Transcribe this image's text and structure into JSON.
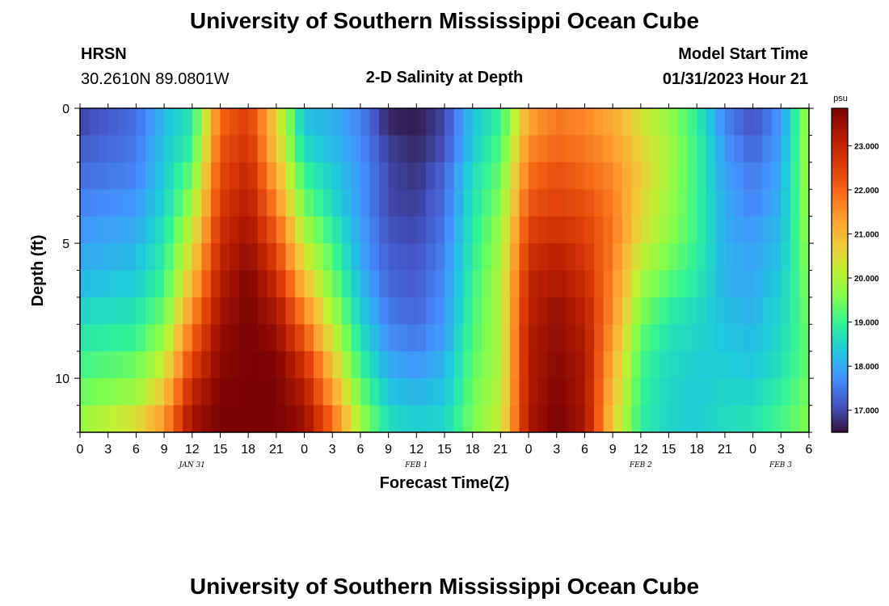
{
  "page": {
    "title": "University of Southern Mississippi Ocean Cube",
    "footer_title": "University of Southern Mississippi Ocean Cube",
    "station": "HRSN",
    "location": "30.2610N  89.0801W",
    "plot_title": "2-D Salinity at Depth",
    "start_label": "Model Start Time",
    "start_value": "01/31/2023 Hour 21"
  },
  "chart_data": {
    "type": "heatmap",
    "title": "2-D Salinity at Depth",
    "xlabel": "Forecast Time(Z)",
    "ylabel": "Depth (ft)",
    "colorbar_unit": "psu",
    "x_ticks": [
      "0",
      "3",
      "6",
      "9",
      "12",
      "15",
      "18",
      "21",
      "0",
      "3",
      "6",
      "9",
      "12",
      "15",
      "18",
      "21",
      "0",
      "3",
      "6",
      "9",
      "12",
      "15",
      "18",
      "21",
      "0",
      "3",
      "6"
    ],
    "day_labels": [
      {
        "label": "JAN 31",
        "hour_index": 12
      },
      {
        "label": "FEB 1",
        "hour_index": 36
      },
      {
        "label": "FEB 2",
        "hour_index": 60
      },
      {
        "label": "FEB 3",
        "hour_index": 84
      }
    ],
    "x_range_hours": [
      0,
      78
    ],
    "y_ticks": [
      0,
      5,
      10
    ],
    "y_range_ft": [
      0,
      12
    ],
    "colorbar_ticks": [
      "17.000",
      "18.000",
      "19.000",
      "20.000",
      "21.000",
      "22.000",
      "23.000"
    ],
    "color_range_psu": [
      16.5,
      23.85
    ],
    "depth_layers_ft": [
      0.5,
      1.5,
      2.5,
      3.5,
      4.5,
      5.5,
      6.5,
      7.5,
      8.5,
      9.5,
      10.5,
      11.5
    ],
    "profile_time_hours": [
      0,
      6,
      9,
      12,
      15,
      18,
      21,
      24,
      27,
      30,
      33,
      36,
      39,
      42,
      45,
      48,
      51,
      54,
      57,
      60,
      63,
      66,
      69,
      72,
      75,
      78
    ],
    "profiles_psu": [
      [
        17.0,
        17.4,
        18.2,
        18.8,
        22.0,
        22.6,
        20.6,
        18.3,
        18.1,
        17.6,
        16.7,
        16.6,
        17.0,
        18.3,
        19.0,
        21.3,
        21.8,
        21.6,
        21.2,
        20.4,
        19.8,
        18.9,
        17.6,
        17.1,
        17.8,
        20.0
      ],
      [
        17.2,
        17.5,
        18.3,
        19.0,
        22.2,
        22.8,
        20.8,
        18.6,
        18.2,
        17.7,
        16.9,
        16.7,
        17.1,
        18.4,
        19.2,
        21.6,
        22.0,
        21.8,
        21.4,
        20.6,
        19.9,
        19.0,
        17.8,
        17.3,
        17.9,
        20.0
      ],
      [
        17.4,
        17.6,
        18.4,
        19.4,
        22.4,
        23.0,
        21.2,
        19.0,
        18.4,
        17.8,
        17.0,
        16.8,
        17.3,
        18.6,
        19.4,
        21.9,
        22.3,
        22.0,
        21.6,
        20.7,
        19.9,
        19.0,
        17.9,
        17.5,
        18.0,
        20.0
      ],
      [
        17.6,
        17.8,
        18.5,
        19.8,
        22.6,
        23.2,
        21.6,
        19.4,
        18.6,
        17.8,
        17.0,
        16.9,
        17.4,
        18.7,
        19.6,
        22.2,
        22.5,
        22.3,
        21.7,
        20.6,
        19.8,
        19.0,
        18.0,
        17.6,
        18.1,
        19.9
      ],
      [
        17.8,
        18.0,
        18.7,
        20.2,
        22.8,
        23.4,
        22.1,
        19.9,
        18.9,
        17.9,
        17.1,
        17.0,
        17.5,
        18.8,
        19.8,
        22.5,
        22.8,
        22.5,
        21.8,
        20.5,
        19.7,
        19.0,
        18.0,
        17.8,
        18.2,
        19.8
      ],
      [
        18.0,
        18.2,
        18.9,
        20.6,
        23.0,
        23.6,
        22.5,
        20.4,
        19.2,
        18.0,
        17.2,
        17.1,
        17.6,
        18.9,
        19.9,
        22.8,
        23.1,
        22.7,
        21.7,
        20.2,
        19.5,
        18.9,
        18.1,
        17.9,
        18.3,
        19.7
      ],
      [
        18.2,
        18.4,
        19.1,
        21.0,
        23.2,
        23.8,
        22.9,
        21.0,
        19.5,
        18.2,
        17.3,
        17.2,
        17.7,
        19.0,
        20.0,
        23.0,
        23.3,
        22.9,
        21.6,
        19.9,
        19.2,
        18.8,
        18.1,
        18.0,
        18.4,
        19.6
      ],
      [
        18.5,
        18.7,
        19.4,
        21.5,
        23.4,
        23.85,
        23.3,
        21.6,
        19.9,
        18.4,
        17.5,
        17.3,
        17.8,
        19.1,
        20.0,
        23.1,
        23.5,
        23.1,
        21.5,
        19.6,
        18.9,
        18.6,
        18.2,
        18.1,
        18.5,
        19.5
      ],
      [
        18.8,
        19.0,
        19.8,
        22.0,
        23.6,
        23.85,
        23.6,
        22.2,
        20.3,
        18.7,
        17.7,
        17.5,
        17.9,
        19.2,
        20.0,
        23.2,
        23.6,
        23.2,
        21.3,
        19.3,
        18.7,
        18.5,
        18.3,
        18.2,
        18.6,
        19.4
      ],
      [
        19.1,
        19.4,
        20.3,
        22.5,
        23.7,
        23.85,
        23.8,
        22.8,
        20.8,
        19.0,
        18.0,
        17.8,
        18.1,
        19.3,
        20.0,
        23.2,
        23.7,
        23.3,
        21.1,
        19.1,
        18.6,
        18.4,
        18.4,
        18.3,
        18.7,
        19.4
      ],
      [
        19.4,
        19.8,
        20.8,
        23.0,
        23.8,
        23.85,
        23.85,
        23.2,
        21.3,
        19.4,
        18.3,
        18.1,
        18.3,
        19.4,
        20.1,
        23.2,
        23.8,
        23.3,
        20.9,
        19.0,
        18.5,
        18.4,
        18.5,
        18.5,
        18.9,
        19.5
      ],
      [
        19.8,
        20.4,
        21.4,
        23.4,
        23.85,
        23.85,
        23.85,
        23.5,
        21.9,
        19.8,
        18.6,
        18.4,
        18.5,
        19.5,
        20.2,
        23.3,
        23.85,
        23.4,
        20.7,
        18.9,
        18.5,
        18.4,
        18.6,
        18.7,
        19.1,
        19.6
      ]
    ]
  },
  "colors": {
    "colormap": [
      "#30123b",
      "#4454c4",
      "#4490fe",
      "#1fc9dd",
      "#2ff19a",
      "#7ffe4f",
      "#c2f034",
      "#f3c63a",
      "#fe9b2d",
      "#f36315",
      "#d93807",
      "#b11901",
      "#7a0403"
    ],
    "frame": "#000000"
  }
}
